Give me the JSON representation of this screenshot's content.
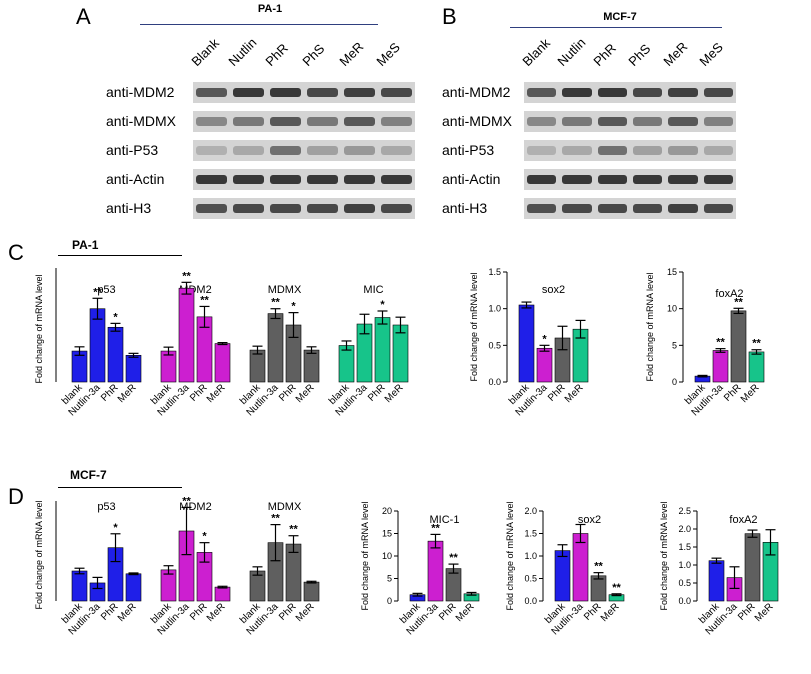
{
  "panels": {
    "A": "A",
    "B": "B",
    "C": "C",
    "D": "D"
  },
  "western": {
    "A": {
      "cell_line": "PA-1"
    },
    "B": {
      "cell_line": "MCF-7"
    },
    "lanes": [
      "Blank",
      "Nutlin",
      "PhR",
      "PhS",
      "MeR",
      "MeS"
    ],
    "rows": [
      "anti-MDM2",
      "anti-MDMX",
      "anti-P53",
      "anti-Actin",
      "anti-H3"
    ],
    "intensity": {
      "A": [
        [
          0.7,
          0.9,
          0.9,
          0.8,
          0.85,
          0.8
        ],
        [
          0.4,
          0.5,
          0.7,
          0.5,
          0.7,
          0.45
        ],
        [
          0.15,
          0.2,
          0.55,
          0.25,
          0.3,
          0.2
        ],
        [
          0.9,
          0.9,
          0.9,
          0.9,
          0.9,
          0.9
        ],
        [
          0.75,
          0.8,
          0.8,
          0.8,
          0.85,
          0.8
        ]
      ],
      "B": [
        [
          0.7,
          0.9,
          0.9,
          0.8,
          0.85,
          0.8
        ],
        [
          0.4,
          0.5,
          0.7,
          0.5,
          0.7,
          0.45
        ],
        [
          0.15,
          0.2,
          0.55,
          0.25,
          0.3,
          0.2
        ],
        [
          0.9,
          0.9,
          0.9,
          0.9,
          0.9,
          0.9
        ],
        [
          0.75,
          0.8,
          0.8,
          0.8,
          0.85,
          0.8
        ]
      ]
    }
  },
  "section_labels": {
    "C": "PA-1",
    "D": "MCF-7"
  },
  "colors": {
    "blank": "#1f1fe8",
    "nutlin": "#cc1fd0",
    "phr": "#5f5f5f",
    "mer": "#17c48a"
  },
  "chart_data": [
    {
      "type": "bar",
      "panel": "C",
      "ylabel": "Fold change of mRNA level",
      "ylim": [
        0,
        3.5
      ],
      "yticks": [],
      "categories": [
        "blank",
        "Nutlin-3a",
        "PhR",
        "MeR"
      ],
      "groups": [
        {
          "title": "p53",
          "values": [
            0.95,
            2.25,
            1.68,
            0.82
          ],
          "errors": [
            0.13,
            0.32,
            0.12,
            0.06
          ],
          "sig": [
            "",
            "**",
            "*",
            ""
          ],
          "colors": [
            "#1f1fe8",
            "#1f1fe8",
            "#1f1fe8",
            "#1f1fe8"
          ]
        },
        {
          "title": "MDM2",
          "values": [
            0.95,
            2.88,
            2.0,
            1.18
          ],
          "errors": [
            0.12,
            0.18,
            0.32,
            0.03
          ],
          "sig": [
            "",
            "**",
            "**",
            ""
          ],
          "colors": [
            "#cc1fd0",
            "#cc1fd0",
            "#cc1fd0",
            "#cc1fd0"
          ]
        },
        {
          "title": "MDMX",
          "values": [
            0.98,
            2.1,
            1.75,
            0.98
          ],
          "errors": [
            0.12,
            0.15,
            0.38,
            0.1
          ],
          "sig": [
            "",
            "**",
            "*",
            ""
          ],
          "colors": [
            "#5f5f5f",
            "#5f5f5f",
            "#5f5f5f",
            "#5f5f5f"
          ]
        },
        {
          "title": "MIC",
          "values": [
            1.12,
            1.78,
            1.98,
            1.75
          ],
          "errors": [
            0.14,
            0.3,
            0.2,
            0.24
          ],
          "sig": [
            "",
            "",
            "*",
            ""
          ],
          "colors": [
            "#17c48a",
            "#17c48a",
            "#17c48a",
            "#17c48a"
          ]
        }
      ]
    },
    {
      "type": "bar",
      "panel": "C",
      "title": "sox2",
      "ylabel": "Fold change of mRNA level",
      "ylim": [
        0,
        1.5
      ],
      "yticks": [
        "0.0",
        "0.5",
        "1.0",
        "1.5"
      ],
      "categories": [
        "blank",
        "Nutlin-3a",
        "PhR",
        "MeR"
      ],
      "values": [
        1.05,
        0.46,
        0.6,
        0.72
      ],
      "errors": [
        0.04,
        0.04,
        0.16,
        0.12
      ],
      "sig": [
        "",
        "*",
        "",
        ""
      ],
      "colors": [
        "#1f1fe8",
        "#cc1fd0",
        "#5f5f5f",
        "#17c48a"
      ]
    },
    {
      "type": "bar",
      "panel": "C",
      "title": "foxA2",
      "ylabel": "Fold change of mRNA level",
      "ylim": [
        0,
        15
      ],
      "yticks": [
        "0",
        "5",
        "10",
        "15"
      ],
      "categories": [
        "blank",
        "Nutlin-3a",
        "PhR",
        "MeR"
      ],
      "values": [
        0.8,
        4.3,
        9.7,
        4.1
      ],
      "errors": [
        0.1,
        0.25,
        0.35,
        0.3
      ],
      "sig": [
        "",
        "**",
        "**",
        "**"
      ],
      "colors": [
        "#1f1fe8",
        "#cc1fd0",
        "#5f5f5f",
        "#17c48a"
      ]
    },
    {
      "type": "bar",
      "panel": "D",
      "ylabel": "Fold change of mRNA level",
      "ylim": [
        0,
        3.6
      ],
      "yticks": [],
      "categories": [
        "blank",
        "Nutlin-3a",
        "PhR",
        "MeR"
      ],
      "groups": [
        {
          "title": "p53",
          "values": [
            1.08,
            0.65,
            1.92,
            0.98
          ],
          "errors": [
            0.1,
            0.2,
            0.5,
            0.03
          ],
          "sig": [
            "",
            "",
            "*",
            ""
          ],
          "colors": [
            "#1f1fe8",
            "#1f1fe8",
            "#1f1fe8",
            "#1f1fe8"
          ]
        },
        {
          "title": "MDM2",
          "values": [
            1.12,
            2.52,
            1.75,
            0.5
          ],
          "errors": [
            0.15,
            0.85,
            0.35,
            0.03
          ],
          "sig": [
            "",
            "**",
            "*",
            ""
          ],
          "colors": [
            "#cc1fd0",
            "#cc1fd0",
            "#cc1fd0",
            "#cc1fd0"
          ]
        },
        {
          "title": "MDMX",
          "values": [
            1.08,
            2.1,
            2.05,
            0.68
          ],
          "errors": [
            0.15,
            0.65,
            0.3,
            0.03
          ],
          "sig": [
            "",
            "**",
            "**",
            ""
          ],
          "colors": [
            "#5f5f5f",
            "#5f5f5f",
            "#5f5f5f",
            "#5f5f5f"
          ]
        }
      ]
    },
    {
      "type": "bar",
      "panel": "D",
      "title": "MIC-1",
      "ylabel": "Fold change of mRNA level",
      "ylim": [
        0,
        20
      ],
      "yticks": [
        "0",
        "5",
        "10",
        "15",
        "20"
      ],
      "categories": [
        "blank",
        "Nutlin-3a",
        "PhR",
        "MeR"
      ],
      "values": [
        1.4,
        13.3,
        7.2,
        1.6
      ],
      "errors": [
        0.3,
        1.5,
        1.0,
        0.3
      ],
      "sig": [
        "",
        "**",
        "**",
        ""
      ],
      "colors": [
        "#1f1fe8",
        "#cc1fd0",
        "#5f5f5f",
        "#17c48a"
      ]
    },
    {
      "type": "bar",
      "panel": "D",
      "title": "sox2",
      "ylabel": "Fold change of mRNA level",
      "ylim": [
        0,
        2.0
      ],
      "yticks": [
        "0.0",
        "0.5",
        "1.0",
        "1.5",
        "2.0"
      ],
      "categories": [
        "blank",
        "Nutlin-3a",
        "PhR",
        "MeR"
      ],
      "values": [
        1.12,
        1.5,
        0.56,
        0.14
      ],
      "errors": [
        0.13,
        0.2,
        0.07,
        0.02
      ],
      "sig": [
        "",
        "",
        "**",
        "**"
      ],
      "colors": [
        "#1f1fe8",
        "#cc1fd0",
        "#5f5f5f",
        "#17c48a"
      ]
    },
    {
      "type": "bar",
      "panel": "D",
      "title": "foxA2",
      "ylabel": "Fold change of mRNA level",
      "ylim": [
        0,
        2.5
      ],
      "yticks": [
        "0.0",
        "0.5",
        "1.0",
        "1.5",
        "2.0",
        "2.5"
      ],
      "categories": [
        "blank",
        "Nutlin-3a",
        "PhR",
        "MeR"
      ],
      "values": [
        1.12,
        0.65,
        1.87,
        1.63
      ],
      "errors": [
        0.07,
        0.3,
        0.1,
        0.35
      ],
      "sig": [
        "",
        "",
        "",
        ""
      ],
      "colors": [
        "#1f1fe8",
        "#cc1fd0",
        "#5f5f5f",
        "#17c48a"
      ]
    }
  ]
}
